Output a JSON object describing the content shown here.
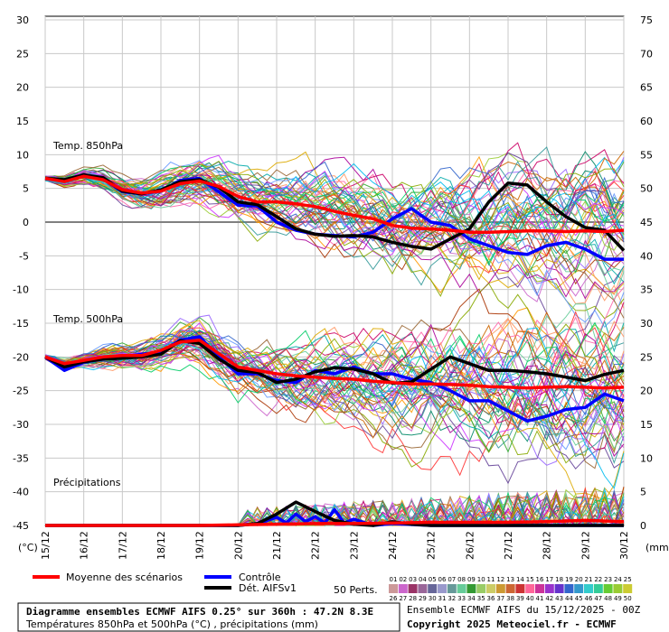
{
  "chart_data": {
    "type": "line",
    "dates": [
      "15/12",
      "16/12",
      "17/12",
      "18/12",
      "19/12",
      "20/12",
      "21/12",
      "22/12",
      "23/12",
      "24/12",
      "25/12",
      "26/12",
      "27/12",
      "28/12",
      "29/12",
      "30/12"
    ],
    "y_left_ticks": [
      30,
      25,
      20,
      15,
      10,
      5,
      0,
      -5,
      -10,
      -15,
      -20,
      -25,
      -30,
      -35,
      -40,
      -45
    ],
    "y_right_ticks": [
      75,
      70,
      65,
      60,
      55,
      50,
      45,
      40,
      35,
      30,
      25,
      20,
      15,
      10,
      5,
      0
    ],
    "ylim_left": [
      -45,
      30
    ],
    "unit_left": "(°C)",
    "unit_right": "(mm)",
    "labels": {
      "t850": "Temp. 850hPa",
      "t500": "Temp. 500hPa",
      "precip": "Précipitations"
    },
    "series": {
      "t850_mean": [
        [
          0,
          6.5
        ],
        [
          0.5,
          6
        ],
        [
          1,
          6.8
        ],
        [
          1.5,
          6.3
        ],
        [
          2,
          4.8
        ],
        [
          2.5,
          4.3
        ],
        [
          3,
          4.6
        ],
        [
          3.5,
          5.7
        ],
        [
          4,
          6.1
        ],
        [
          4.5,
          5.3
        ],
        [
          5,
          3.8
        ],
        [
          5.5,
          3
        ],
        [
          6,
          3
        ],
        [
          6.5,
          2.7
        ],
        [
          7,
          2.3
        ],
        [
          7.5,
          1.6
        ],
        [
          8,
          1
        ],
        [
          8.5,
          0.5
        ],
        [
          9,
          -0.5
        ],
        [
          9.5,
          -0.9
        ],
        [
          10,
          -1
        ],
        [
          10.5,
          -1.2
        ],
        [
          11,
          -1.5
        ],
        [
          11.5,
          -1.5
        ],
        [
          12,
          -1.4
        ],
        [
          12.5,
          -1.3
        ],
        [
          13,
          -1.3
        ],
        [
          13.5,
          -1.4
        ],
        [
          14,
          -1.3
        ],
        [
          14.5,
          -1.4
        ],
        [
          15,
          -1.2
        ]
      ],
      "t850_control": [
        [
          0,
          6.5
        ],
        [
          0.5,
          6.2
        ],
        [
          1,
          7
        ],
        [
          1.5,
          6.4
        ],
        [
          2,
          4.5
        ],
        [
          2.5,
          4.2
        ],
        [
          3,
          4.6
        ],
        [
          3.5,
          6.2
        ],
        [
          4,
          6.5
        ],
        [
          4.5,
          4.5
        ],
        [
          5,
          2.5
        ],
        [
          5.5,
          2.4
        ],
        [
          6,
          0
        ],
        [
          6.5,
          -1.2
        ],
        [
          7,
          -1.8
        ],
        [
          7.5,
          -2
        ],
        [
          8,
          -2.2
        ],
        [
          8.5,
          -1.5
        ],
        [
          9,
          0.5
        ],
        [
          9.5,
          2
        ],
        [
          10,
          0
        ],
        [
          10.5,
          -0.5
        ],
        [
          11,
          -2.5
        ],
        [
          11.5,
          -3.5
        ],
        [
          12,
          -4.5
        ],
        [
          12.5,
          -4.8
        ],
        [
          13,
          -3.5
        ],
        [
          13.5,
          -3
        ],
        [
          14,
          -4
        ],
        [
          14.5,
          -5.5
        ],
        [
          15,
          -5.5
        ]
      ],
      "t850_det": [
        [
          0,
          6.5
        ],
        [
          0.5,
          6.3
        ],
        [
          1,
          7
        ],
        [
          1.5,
          6.6
        ],
        [
          2,
          4.6
        ],
        [
          2.5,
          4.2
        ],
        [
          3,
          4.8
        ],
        [
          3.5,
          6
        ],
        [
          4,
          6.3
        ],
        [
          4.5,
          5.2
        ],
        [
          5,
          3
        ],
        [
          5.5,
          2.6
        ],
        [
          6,
          0.8
        ],
        [
          6.5,
          -1
        ],
        [
          7,
          -1.8
        ],
        [
          7.5,
          -2.1
        ],
        [
          8,
          -2
        ],
        [
          8.5,
          -2.2
        ],
        [
          9,
          -3
        ],
        [
          9.5,
          -3.6
        ],
        [
          10,
          -4
        ],
        [
          10.5,
          -2.5
        ],
        [
          11,
          -1
        ],
        [
          11.5,
          3
        ],
        [
          12,
          5.8
        ],
        [
          12.5,
          5.5
        ],
        [
          13,
          3
        ],
        [
          13.5,
          0.8
        ],
        [
          14,
          -0.8
        ],
        [
          14.5,
          -1.2
        ],
        [
          15,
          -4.2
        ]
      ],
      "t500_mean": [
        [
          0,
          -20
        ],
        [
          0.5,
          -21
        ],
        [
          1,
          -20.5
        ],
        [
          1.5,
          -20
        ],
        [
          2,
          -19.8
        ],
        [
          2.5,
          -19.8
        ],
        [
          3,
          -19
        ],
        [
          3.5,
          -17.8
        ],
        [
          4,
          -17.5
        ],
        [
          4.5,
          -19.5
        ],
        [
          5,
          -21.5
        ],
        [
          5.5,
          -22
        ],
        [
          6,
          -22.5
        ],
        [
          6.5,
          -22.8
        ],
        [
          7,
          -23
        ],
        [
          7.5,
          -23.2
        ],
        [
          8,
          -23.3
        ],
        [
          8.5,
          -23.6
        ],
        [
          9,
          -23.8
        ],
        [
          9.5,
          -24
        ],
        [
          10,
          -24
        ],
        [
          10.5,
          -24.1
        ],
        [
          11,
          -24.2
        ],
        [
          11.5,
          -24.4
        ],
        [
          12,
          -24.5
        ],
        [
          12.5,
          -24.6
        ],
        [
          13,
          -24.5
        ],
        [
          13.5,
          -24.4
        ],
        [
          14,
          -24.5
        ],
        [
          14.5,
          -24.6
        ],
        [
          15,
          -24.5
        ]
      ],
      "t500_control": [
        [
          0,
          -20
        ],
        [
          0.5,
          -22
        ],
        [
          1,
          -20.8
        ],
        [
          1.5,
          -20.3
        ],
        [
          2,
          -20
        ],
        [
          2.5,
          -19.6
        ],
        [
          3,
          -19.3
        ],
        [
          3.5,
          -17.5
        ],
        [
          4,
          -17
        ],
        [
          4.5,
          -20
        ],
        [
          5,
          -22.5
        ],
        [
          5.5,
          -22.5
        ],
        [
          6,
          -23.5
        ],
        [
          6.5,
          -23.8
        ],
        [
          7,
          -22
        ],
        [
          7.5,
          -22.5
        ],
        [
          8,
          -21.5
        ],
        [
          8.5,
          -22.5
        ],
        [
          9,
          -22.5
        ],
        [
          9.5,
          -23.3
        ],
        [
          10,
          -23.8
        ],
        [
          10.5,
          -25
        ],
        [
          11,
          -26.5
        ],
        [
          11.5,
          -26.5
        ],
        [
          12,
          -28
        ],
        [
          12.5,
          -29.5
        ],
        [
          13,
          -28.8
        ],
        [
          13.5,
          -27.8
        ],
        [
          14,
          -27.5
        ],
        [
          14.5,
          -25.5
        ],
        [
          15,
          -26.5
        ]
      ],
      "t500_det": [
        [
          0,
          -20
        ],
        [
          0.5,
          -21.5
        ],
        [
          1,
          -20.7
        ],
        [
          1.5,
          -20.3
        ],
        [
          2,
          -20.2
        ],
        [
          2.5,
          -20
        ],
        [
          3,
          -19.6
        ],
        [
          3.5,
          -17.6
        ],
        [
          4,
          -18
        ],
        [
          4.5,
          -20.3
        ],
        [
          5,
          -22
        ],
        [
          5.5,
          -22.3
        ],
        [
          6,
          -23.8
        ],
        [
          6.5,
          -23.3
        ],
        [
          7,
          -22.2
        ],
        [
          7.5,
          -21.6
        ],
        [
          8,
          -21.8
        ],
        [
          8.5,
          -22.5
        ],
        [
          9,
          -23.9
        ],
        [
          9.5,
          -23.7
        ],
        [
          10,
          -21.8
        ],
        [
          10.5,
          -20
        ],
        [
          11,
          -21
        ],
        [
          11.5,
          -22
        ],
        [
          12,
          -22
        ],
        [
          12.5,
          -22.2
        ],
        [
          13,
          -22.5
        ],
        [
          13.5,
          -23
        ],
        [
          14,
          -23.5
        ],
        [
          14.5,
          -22.6
        ],
        [
          15,
          -22
        ]
      ],
      "precip_mean": [
        [
          0,
          0
        ],
        [
          4,
          0
        ],
        [
          5,
          0.1
        ],
        [
          6,
          0.2
        ],
        [
          7,
          0.3
        ],
        [
          8,
          0.3
        ],
        [
          9,
          0.4
        ],
        [
          10,
          0.5
        ],
        [
          11,
          0.5
        ],
        [
          12,
          0.5
        ],
        [
          13,
          0.6
        ],
        [
          14,
          0.8
        ],
        [
          15,
          0.6
        ]
      ],
      "precip_control": [
        [
          0,
          0
        ],
        [
          5,
          0
        ],
        [
          5.5,
          0.3
        ],
        [
          6,
          1.3
        ],
        [
          6.25,
          0.4
        ],
        [
          6.5,
          1.8
        ],
        [
          6.75,
          0.6
        ],
        [
          7,
          1.4
        ],
        [
          7.25,
          0.4
        ],
        [
          7.5,
          2.5
        ],
        [
          7.75,
          0.4
        ],
        [
          8,
          1
        ],
        [
          8.5,
          0
        ],
        [
          9,
          0.3
        ],
        [
          10,
          0
        ],
        [
          15,
          0
        ]
      ],
      "precip_det": [
        [
          0,
          0
        ],
        [
          5,
          0
        ],
        [
          5.5,
          0.3
        ],
        [
          6,
          1.8
        ],
        [
          6.5,
          3.7
        ],
        [
          7,
          2.2
        ],
        [
          7.5,
          0.8
        ],
        [
          8,
          0.2
        ],
        [
          8.5,
          0
        ],
        [
          9,
          0.6
        ],
        [
          9.5,
          0.2
        ],
        [
          10,
          0
        ],
        [
          15,
          0
        ]
      ]
    }
  },
  "legend": {
    "mean": "Moyenne des scénarios",
    "control": "Contrôle",
    "det": "Dét. AIFSv1",
    "perts": "50 Perts.",
    "row1": [
      "01",
      "02",
      "03",
      "04",
      "05",
      "06",
      "07",
      "08",
      "09",
      "10",
      "11",
      "12",
      "13",
      "14",
      "15",
      "16",
      "17",
      "18",
      "19",
      "20",
      "21",
      "22",
      "23",
      "24",
      "25"
    ],
    "row2": [
      "26",
      "27",
      "28",
      "29",
      "30",
      "31",
      "32",
      "33",
      "34",
      "35",
      "36",
      "37",
      "38",
      "39",
      "40",
      "41",
      "42",
      "43",
      "44",
      "45",
      "46",
      "47",
      "48",
      "49",
      "50"
    ]
  },
  "footer": {
    "title": "Diagramme ensembles ECMWF AIFS 0.25° sur 360h : 47.2N 8.3E",
    "subtitle": "Températures 850hPa et 500hPa (°C) , précipitations (mm)",
    "run": "Ensemble ECMWF AIFS du 15/12/2025 - 00Z",
    "copyright": "Copyright 2025 Meteociel.fr - ECMWF"
  },
  "colors": {
    "mean": "#ff0000",
    "control": "#0000ff",
    "det": "#000000",
    "grid": "#c0c0c0"
  }
}
